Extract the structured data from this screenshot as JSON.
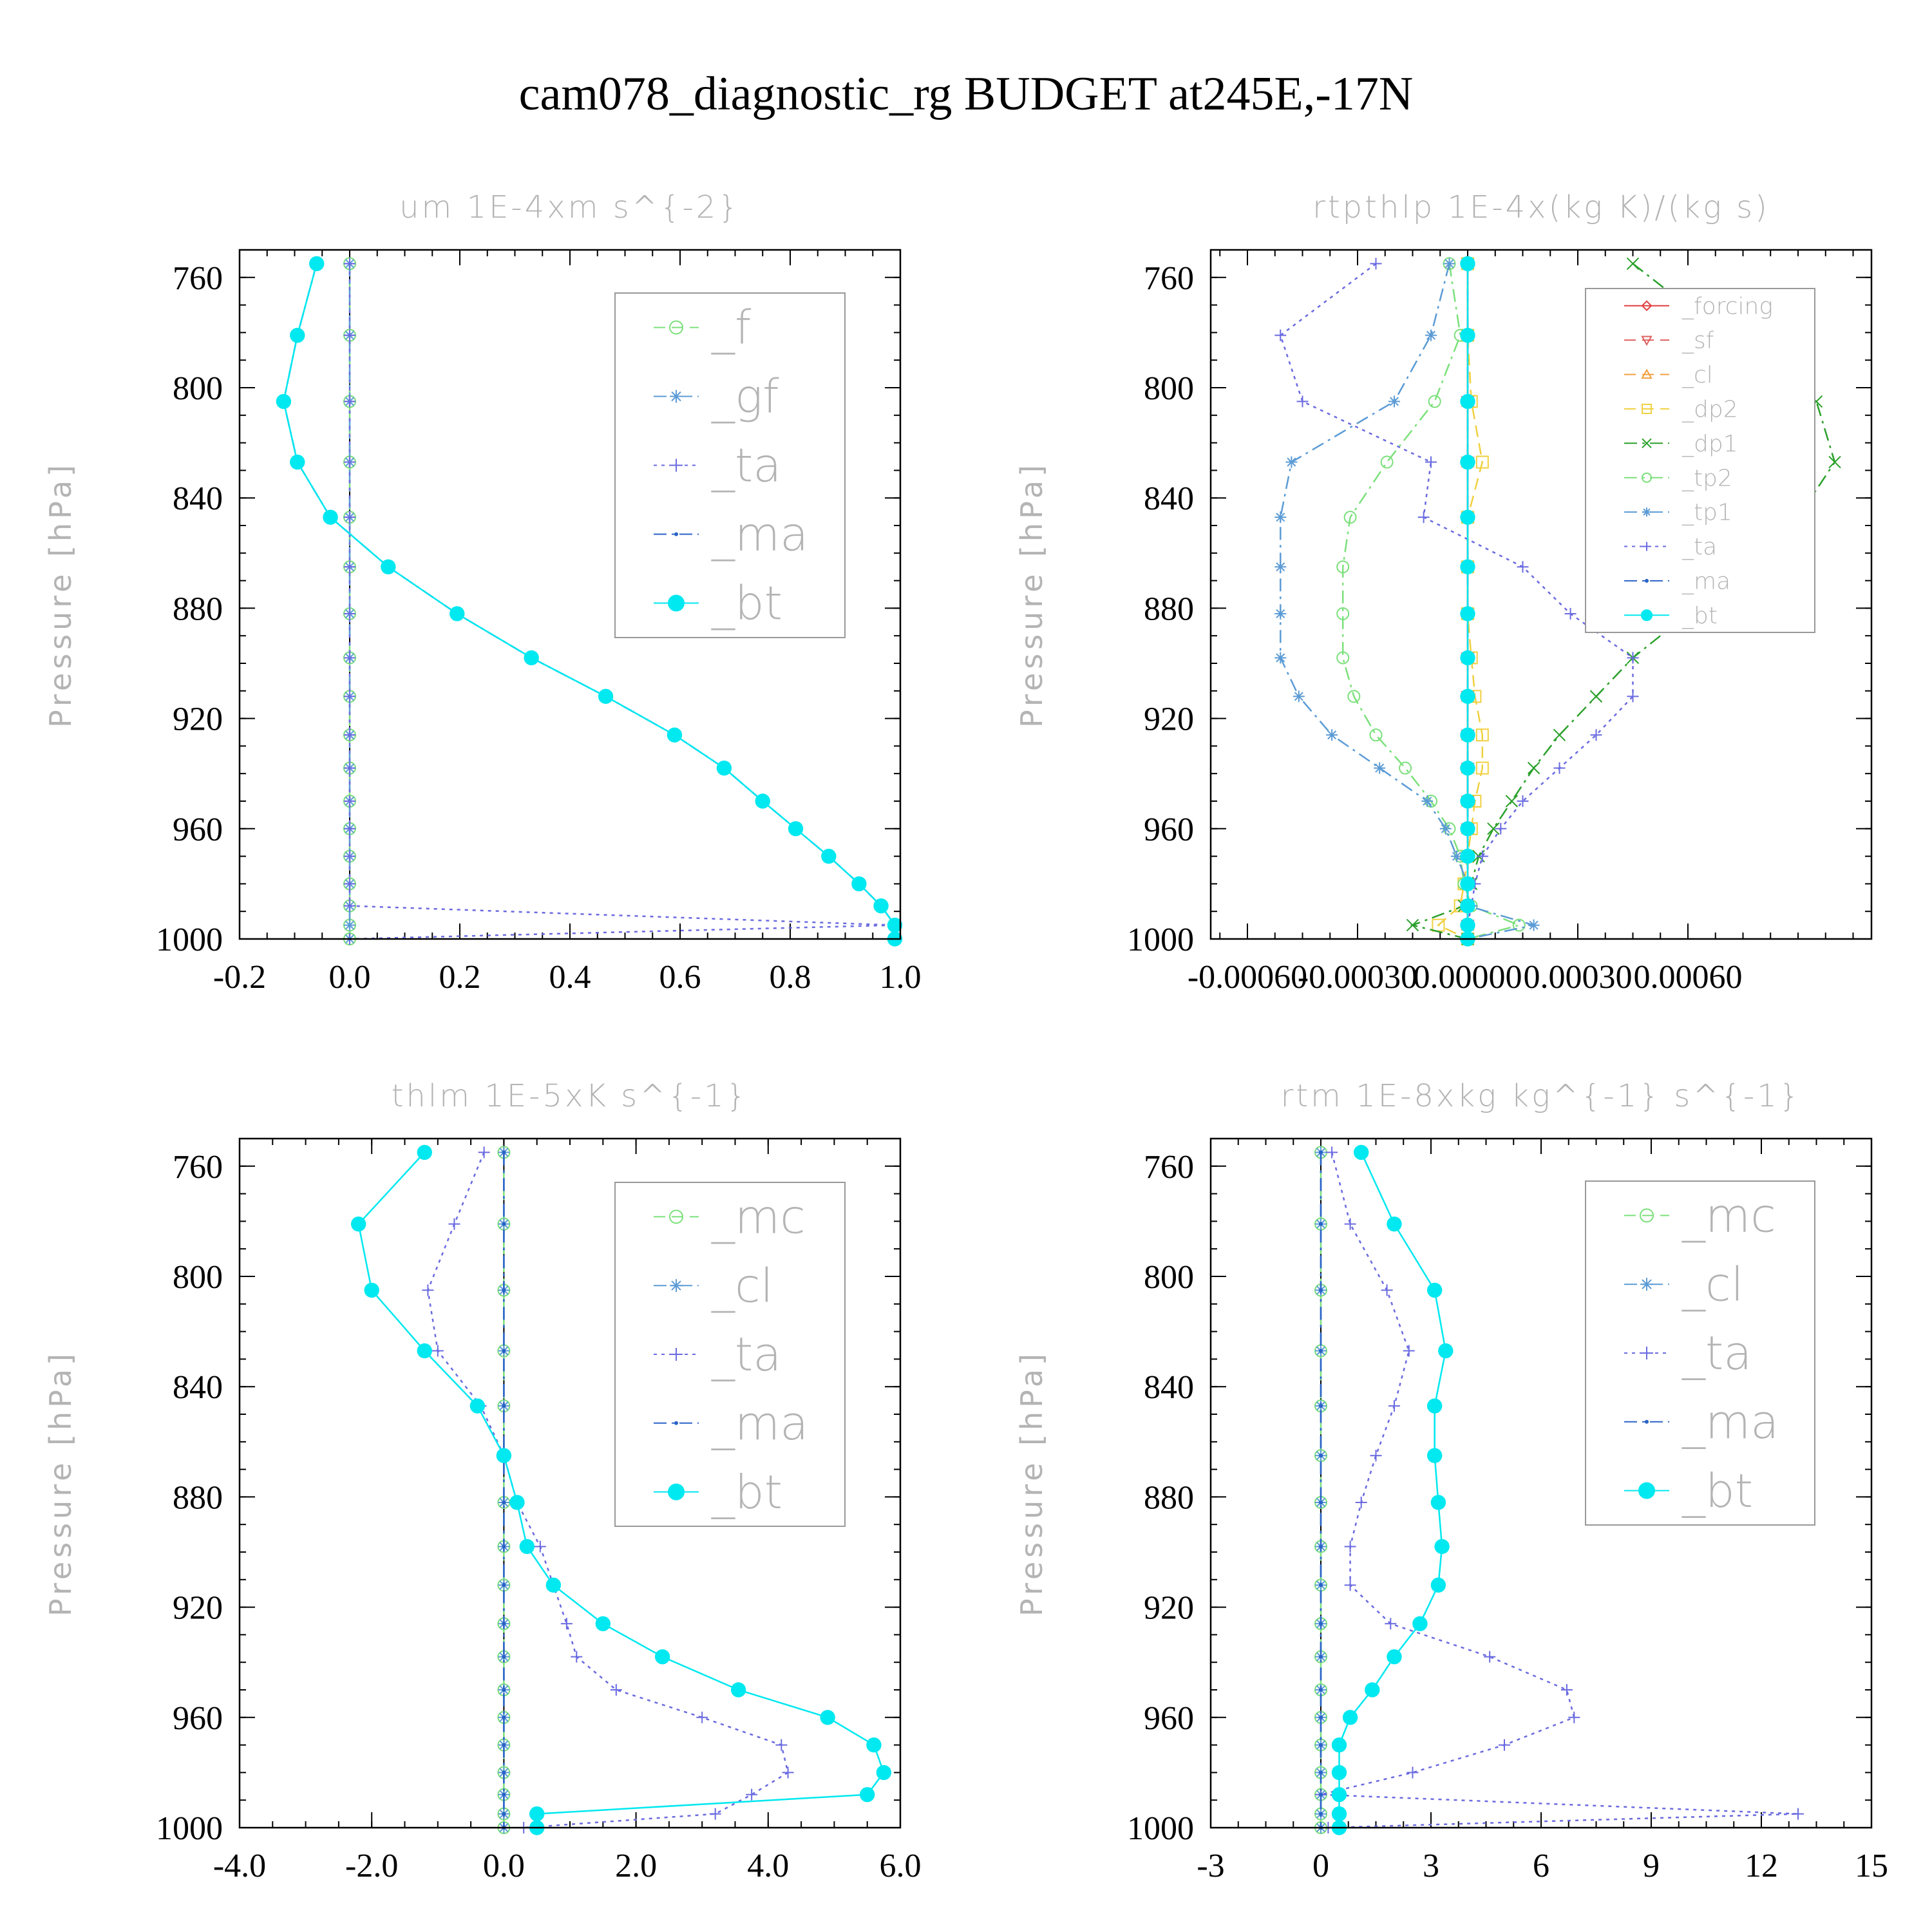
{
  "figure": {
    "title": "cam078_diagnostic_rg  BUDGET at245E,-17N"
  },
  "levels": [
    755,
    781,
    805,
    827,
    847,
    865,
    882,
    898,
    912,
    926,
    938,
    950,
    960,
    970,
    980,
    988,
    995,
    1000
  ],
  "chart_data": [
    {
      "type": "line",
      "title": "um   1E-4xm s^{-2}",
      "ylabel": "Pressure [hPa]",
      "xlabel": "",
      "xlim": [
        -0.2,
        1.0
      ],
      "ylim": [
        1000,
        750
      ],
      "xticks": [
        -0.2,
        0.0,
        0.2,
        0.4,
        0.6,
        0.8,
        1.0
      ],
      "xtick_labels": [
        "-0.2",
        "0.0",
        "0.2",
        "0.4",
        "0.6",
        "0.8",
        "1.0"
      ],
      "yticks": [
        760,
        800,
        840,
        880,
        920,
        960,
        1000
      ],
      "ytick_labels": [
        "760",
        "800",
        "840",
        "880",
        "920",
        "960",
        "1000"
      ],
      "legend": "top-right",
      "series": [
        {
          "name": "_f",
          "color": "#7be07b",
          "marker": "circle",
          "dash": "dash",
          "values": [
            0,
            0,
            0,
            0,
            0,
            0,
            0,
            0,
            0,
            0,
            0,
            0,
            0,
            0,
            0,
            0,
            0,
            0
          ]
        },
        {
          "name": "_gf",
          "color": "#5b9bd5",
          "marker": "asterisk",
          "dash": "dashdot",
          "values": [
            0,
            0,
            0,
            0,
            0,
            0,
            0,
            0,
            0,
            0,
            0,
            0,
            0,
            0,
            0,
            0,
            0,
            0
          ]
        },
        {
          "name": "_ta",
          "color": "#6a6ae0",
          "marker": "plus",
          "dash": "dot",
          "values": [
            0,
            0,
            0,
            0,
            0,
            0,
            0,
            0,
            0,
            0,
            0,
            0,
            0,
            0,
            0,
            0,
            0.99,
            0
          ]
        },
        {
          "name": "_ma",
          "color": "#2a62c8",
          "marker": "dot",
          "dash": "dashdot",
          "values": [
            -0.06,
            -0.095,
            -0.12,
            -0.095,
            -0.035,
            0.07,
            0.195,
            0.33,
            0.465,
            0.59,
            0.68,
            0.75,
            0.81,
            0.87,
            0.925,
            0.965,
            0.99,
            0.99
          ]
        },
        {
          "name": "_bt",
          "color": "#00e8f0",
          "marker": "filled",
          "dash": "solid",
          "values": [
            -0.06,
            -0.095,
            -0.12,
            -0.095,
            -0.035,
            0.07,
            0.195,
            0.33,
            0.465,
            0.59,
            0.68,
            0.75,
            0.81,
            0.87,
            0.925,
            0.965,
            0.99,
            0.99
          ]
        }
      ]
    },
    {
      "type": "line",
      "title": "rtpthlp   1E-4x(kg K)/(kg s)",
      "ylabel": "Pressure [hPa]",
      "xlabel": "",
      "xlim": [
        -0.0007,
        0.0011
      ],
      "ylim": [
        1000,
        750
      ],
      "xticks": [
        -0.0006,
        -0.0003,
        0.0,
        0.0003,
        0.0006
      ],
      "xtick_labels": [
        "-0.00060",
        "-0.00030",
        "0.00000",
        "0.00030",
        "0.00060"
      ],
      "yticks": [
        760,
        800,
        840,
        880,
        920,
        960,
        1000
      ],
      "ytick_labels": [
        "760",
        "800",
        "840",
        "880",
        "920",
        "960",
        "1000"
      ],
      "legend": "top-right",
      "series": [
        {
          "name": "_forcing",
          "color": "#e04040",
          "marker": "diamond",
          "dash": "solid",
          "values": [
            0,
            0,
            0,
            0,
            0,
            0,
            0,
            0,
            0,
            0,
            0,
            0,
            0,
            0,
            0,
            0,
            0,
            0
          ]
        },
        {
          "name": "_sf",
          "color": "#e06060",
          "marker": "tri-down",
          "dash": "dash",
          "values": [
            0,
            0,
            0,
            0,
            0,
            0,
            0,
            0,
            0,
            0,
            0,
            0,
            0,
            0,
            0,
            0,
            0,
            0
          ]
        },
        {
          "name": "_cl",
          "color": "#f0a040",
          "marker": "tri-up",
          "dash": "dash",
          "values": [
            0,
            0,
            0,
            0,
            0,
            0,
            0,
            0,
            0,
            0,
            0,
            0,
            0,
            0,
            0,
            0,
            0,
            0
          ]
        },
        {
          "name": "_dp2",
          "color": "#f0d040",
          "marker": "square",
          "dash": "dash",
          "values": [
            0,
            0,
            1e-05,
            4e-05,
            0,
            0,
            0,
            1e-05,
            2e-05,
            4e-05,
            4e-05,
            2e-05,
            1e-05,
            0,
            -1e-05,
            -2e-05,
            -8e-05,
            0
          ]
        },
        {
          "name": "_dp1",
          "color": "#2aa02a",
          "marker": "x",
          "dash": "dashdot",
          "values": [
            0.00045,
            0.0007,
            0.00095,
            0.001,
            0.0009,
            0.00075,
            0.0006,
            0.00045,
            0.00035,
            0.00025,
            0.00018,
            0.00012,
            7e-05,
            3e-05,
            1e-05,
            -1e-05,
            -0.00015,
            0
          ]
        },
        {
          "name": "_tp2",
          "color": "#7be07b",
          "marker": "circle",
          "dash": "dashdot",
          "values": [
            -5e-05,
            -2e-05,
            -9e-05,
            -0.00022,
            -0.00032,
            -0.00034,
            -0.00034,
            -0.00034,
            -0.00031,
            -0.00025,
            -0.00017,
            -0.0001,
            -5e-05,
            -2e-05,
            -1e-05,
            1e-05,
            0.00014,
            0
          ]
        },
        {
          "name": "_tp1",
          "color": "#5b9bd5",
          "marker": "asterisk",
          "dash": "dashdot",
          "values": [
            -5e-05,
            -0.0001,
            -0.0002,
            -0.00048,
            -0.00051,
            -0.00051,
            -0.00051,
            -0.00051,
            -0.00046,
            -0.00037,
            -0.00024,
            -0.00011,
            -6e-05,
            -3e-05,
            0,
            0,
            0.00018,
            0
          ]
        },
        {
          "name": "_ta",
          "color": "#6a6ae0",
          "marker": "plus",
          "dash": "dot",
          "values": [
            -0.00025,
            -0.00051,
            -0.00045,
            -0.0001,
            -0.00012,
            0.00015,
            0.00028,
            0.00045,
            0.00045,
            0.00035,
            0.00025,
            0.00015,
            9e-05,
            4e-05,
            2e-05,
            1e-05,
            0,
            0
          ]
        },
        {
          "name": "_ma",
          "color": "#2a62c8",
          "marker": "dot",
          "dash": "dashdot",
          "values": [
            0,
            0,
            0,
            0,
            0,
            0,
            0,
            0,
            0,
            0,
            0,
            0,
            0,
            0,
            0,
            0,
            0,
            0
          ]
        },
        {
          "name": "_bt",
          "color": "#00e8f0",
          "marker": "filled",
          "dash": "solid",
          "values": [
            0,
            0,
            0,
            0,
            0,
            0,
            0,
            0,
            0,
            0,
            0,
            0,
            0,
            0,
            0,
            0,
            0,
            0
          ]
        }
      ]
    },
    {
      "type": "line",
      "title": "thlm   1E-5xK s^{-1}",
      "ylabel": "Pressure [hPa]",
      "xlabel": "",
      "xlim": [
        -4.0,
        6.0
      ],
      "ylim": [
        1000,
        750
      ],
      "xticks": [
        -4,
        -2,
        0,
        2,
        4,
        6
      ],
      "xtick_labels": [
        "-4.0",
        "-2.0",
        "0.0",
        "2.0",
        "4.0",
        "6.0"
      ],
      "yticks": [
        760,
        800,
        840,
        880,
        920,
        960,
        1000
      ],
      "ytick_labels": [
        "760",
        "800",
        "840",
        "880",
        "920",
        "960",
        "1000"
      ],
      "legend": "top-right",
      "series": [
        {
          "name": "_mc",
          "color": "#7be07b",
          "marker": "circle",
          "dash": "dash",
          "values": [
            0,
            0,
            0,
            0,
            0,
            0,
            0,
            0,
            0,
            0,
            0,
            0,
            0,
            0,
            0,
            0,
            0,
            0
          ]
        },
        {
          "name": "_cl",
          "color": "#5b9bd5",
          "marker": "asterisk",
          "dash": "dashdot",
          "values": [
            0,
            0,
            0,
            0,
            0,
            0,
            0,
            0,
            0,
            0,
            0,
            0,
            0,
            0,
            0,
            0,
            0,
            0
          ]
        },
        {
          "name": "_ta",
          "color": "#6a6ae0",
          "marker": "plus",
          "dash": "dot",
          "values": [
            -0.3,
            -0.75,
            -1.15,
            -1.0,
            -0.35,
            0.0,
            0.2,
            0.55,
            0.75,
            0.95,
            1.1,
            1.7,
            3.0,
            4.2,
            4.3,
            3.75,
            3.2,
            0.3
          ]
        },
        {
          "name": "_ma",
          "color": "#2a62c8",
          "marker": "dot",
          "dash": "dashdot",
          "values": [
            0,
            0,
            0,
            0,
            0,
            0,
            0,
            0,
            0,
            0,
            0,
            0,
            0,
            0,
            0,
            0,
            0,
            0
          ]
        },
        {
          "name": "_bt",
          "color": "#00e8f0",
          "marker": "filled",
          "dash": "solid",
          "values": [
            -1.2,
            -2.2,
            -2.0,
            -1.2,
            -0.4,
            0.0,
            0.2,
            0.35,
            0.75,
            1.5,
            2.4,
            3.55,
            4.9,
            5.6,
            5.75,
            5.5,
            0.5,
            0.5
          ]
        }
      ]
    },
    {
      "type": "line",
      "title": "rtm   1E-8xkg kg^{-1} s^{-1}",
      "ylabel": "Pressure [hPa]",
      "xlabel": "",
      "xlim": [
        -3,
        15
      ],
      "ylim": [
        1000,
        750
      ],
      "xticks": [
        -3,
        0,
        3,
        6,
        9,
        12,
        15
      ],
      "xtick_labels": [
        "-3",
        "0",
        "3",
        "6",
        "9",
        "12",
        "15"
      ],
      "yticks": [
        760,
        800,
        840,
        880,
        920,
        960,
        1000
      ],
      "ytick_labels": [
        "760",
        "800",
        "840",
        "880",
        "920",
        "960",
        "1000"
      ],
      "legend": "top-right",
      "series": [
        {
          "name": "_mc",
          "color": "#7be07b",
          "marker": "circle",
          "dash": "dash",
          "values": [
            0,
            0,
            0,
            0,
            0,
            0,
            0,
            0,
            0,
            0,
            0,
            0,
            0,
            0,
            0,
            0,
            0,
            0
          ]
        },
        {
          "name": "_cl",
          "color": "#5b9bd5",
          "marker": "asterisk",
          "dash": "dashdot",
          "values": [
            0,
            0,
            0,
            0,
            0,
            0,
            0,
            0,
            0,
            0,
            0,
            0,
            0,
            0,
            0,
            0,
            0,
            0
          ]
        },
        {
          "name": "_ta",
          "color": "#6a6ae0",
          "marker": "plus",
          "dash": "dot",
          "values": [
            0.3,
            0.8,
            1.8,
            2.4,
            2.0,
            1.5,
            1.1,
            0.8,
            0.8,
            1.9,
            4.6,
            6.7,
            6.9,
            5.0,
            2.5,
            0.0,
            13.0,
            0.2
          ]
        },
        {
          "name": "_ma",
          "color": "#2a62c8",
          "marker": "dot",
          "dash": "dashdot",
          "values": [
            0,
            0,
            0,
            0,
            0,
            0,
            0,
            0,
            0,
            0,
            0,
            0,
            0,
            0,
            0,
            0,
            0,
            0
          ]
        },
        {
          "name": "_bt",
          "color": "#00e8f0",
          "marker": "filled",
          "dash": "solid",
          "values": [
            1.1,
            2.0,
            3.1,
            3.4,
            3.1,
            3.1,
            3.2,
            3.3,
            3.2,
            2.7,
            2.0,
            1.4,
            0.8,
            0.5,
            0.5,
            0.5,
            0.5,
            0.5
          ]
        }
      ]
    }
  ]
}
